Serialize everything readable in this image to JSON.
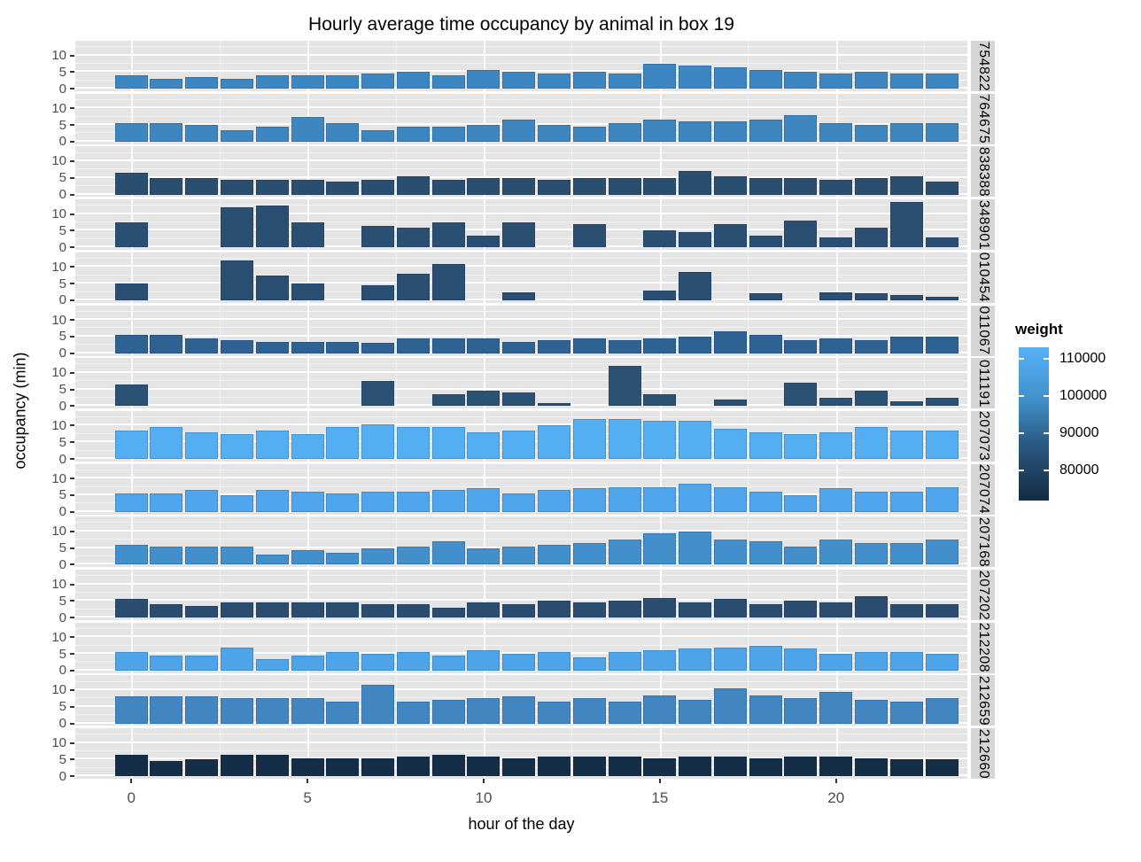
{
  "title": "Hourly average time occupancy by animal in box 19",
  "chart_data": {
    "type": "bar",
    "faceting": "one row per animal id, shared x axis",
    "xlabel": "hour of the day",
    "ylabel": "occupancy (min)",
    "x": [
      0,
      1,
      2,
      3,
      4,
      5,
      6,
      7,
      8,
      9,
      10,
      11,
      12,
      13,
      14,
      15,
      16,
      17,
      18,
      19,
      20,
      21,
      22,
      23
    ],
    "x_ticks": [
      0,
      5,
      10,
      15,
      20
    ],
    "y_ticks": [
      0,
      5,
      10
    ],
    "y_minor_ticks": [
      2.5,
      7.5,
      12.5
    ],
    "ylim": [
      0,
      14
    ],
    "legend": {
      "title": "weight",
      "ticks": [
        110000,
        100000,
        90000,
        80000
      ],
      "high_color": "#56B1F7",
      "low_color": "#132B43",
      "gradient_stops": [
        "#56B1F7",
        "#4090C9",
        "#2C5A84",
        "#132B43"
      ]
    },
    "panel_bg": "#E5E5E5",
    "strip_bg": "#D6D6D6",
    "facets": [
      {
        "label": "754822",
        "color": "#3C87C1",
        "values": [
          4,
          3,
          3.5,
          3,
          4,
          4,
          4,
          4.5,
          5,
          4,
          5.5,
          5,
          4.5,
          5,
          4.5,
          7.5,
          7,
          6.5,
          5.5,
          5,
          4.5,
          5,
          4.5,
          4.5
        ]
      },
      {
        "label": "764675",
        "color": "#3D86BF",
        "values": [
          5.5,
          5.5,
          5,
          3.5,
          4.5,
          7.5,
          5.5,
          3.5,
          4.5,
          4.5,
          5,
          6.5,
          5,
          4.5,
          5.5,
          6.5,
          6,
          6,
          6.5,
          8,
          5.5,
          5,
          5.5,
          5.5
        ]
      },
      {
        "label": "838388",
        "color": "#2A4E70",
        "values": [
          6.5,
          5,
          5,
          4.5,
          4.5,
          4.5,
          4,
          4.5,
          5.5,
          4.5,
          5,
          5,
          4.5,
          5,
          5,
          5,
          7,
          5.5,
          5,
          5,
          4.5,
          5,
          5.5,
          4
        ]
      },
      {
        "label": "348901",
        "color": "#2B4F72",
        "values": [
          7.5,
          0,
          0,
          12,
          12.5,
          7.5,
          0,
          6.5,
          6,
          7.5,
          3.5,
          7.5,
          0,
          7,
          0,
          5,
          4.5,
          7,
          3.5,
          8,
          3,
          6,
          13.5,
          3
        ]
      },
      {
        "label": "010454",
        "color": "#2B4F72",
        "values": [
          5,
          0,
          0,
          12,
          7.5,
          5,
          0,
          4.5,
          8,
          11,
          0,
          2.5,
          0,
          0,
          0,
          3,
          8.5,
          0,
          2,
          0,
          2.5,
          2,
          1.5,
          1
        ]
      },
      {
        "label": "011067",
        "color": "#2E6293",
        "values": [
          5.5,
          5.5,
          4.5,
          4,
          3.5,
          3.5,
          3.5,
          3,
          4.5,
          4.5,
          4.5,
          3.5,
          4,
          4.5,
          4,
          4.5,
          5,
          6.5,
          5.5,
          4,
          4.5,
          4,
          5,
          5
        ]
      },
      {
        "label": "011191",
        "color": "#2A5275",
        "values": [
          6.5,
          0,
          0,
          0,
          0,
          0,
          0,
          7.5,
          0,
          3.5,
          4.5,
          4,
          1,
          0,
          12,
          3.5,
          0,
          2,
          0,
          7,
          2.5,
          4.5,
          1.5,
          2.5
        ]
      },
      {
        "label": "207073",
        "color": "#54AEF2",
        "values": [
          8.5,
          9.5,
          8,
          7.5,
          8.5,
          7.5,
          9.5,
          10.5,
          9.5,
          9.5,
          8,
          8.5,
          10,
          12,
          12,
          11.5,
          11.5,
          9,
          8,
          7.5,
          8,
          9.5,
          8.5,
          8.5
        ]
      },
      {
        "label": "207074",
        "color": "#4FA5EC",
        "values": [
          5.5,
          5.5,
          6.5,
          5,
          6.5,
          6,
          5.5,
          6,
          6,
          6.5,
          7,
          5.5,
          6.5,
          7,
          7.5,
          7.5,
          8.5,
          7.5,
          6,
          5,
          7,
          6,
          6,
          7.5
        ]
      },
      {
        "label": "207168",
        "color": "#438FCB",
        "values": [
          6,
          5.5,
          5.5,
          5.5,
          3,
          4.5,
          3.5,
          5,
          5.5,
          7,
          5,
          5.5,
          6,
          6.5,
          7.5,
          9.5,
          10,
          7.5,
          7,
          5.5,
          7.5,
          6.5,
          6.5,
          7.5
        ]
      },
      {
        "label": "207202",
        "color": "#2A4C6E",
        "values": [
          5.5,
          4,
          3.5,
          4.5,
          4.5,
          4.5,
          4.5,
          4,
          4,
          3,
          4.5,
          4,
          5,
          4.5,
          5,
          6,
          4.5,
          5.5,
          4,
          5,
          4.5,
          6.5,
          4,
          4
        ]
      },
      {
        "label": "212208",
        "color": "#4EA4E8",
        "values": [
          5.5,
          4.5,
          4.5,
          7,
          3.5,
          4.5,
          5.5,
          5,
          5.5,
          4.5,
          6,
          5,
          5.5,
          4,
          5.5,
          6,
          6.5,
          7,
          7.5,
          6.5,
          5,
          5.5,
          5.5,
          5
        ]
      },
      {
        "label": "212659",
        "color": "#4186C0",
        "values": [
          8,
          8,
          8,
          7.5,
          7.5,
          7.5,
          6.5,
          11.5,
          6.5,
          7,
          7.5,
          8,
          6.5,
          7.5,
          6.5,
          8.5,
          7,
          10.5,
          8.5,
          7.5,
          9.5,
          7,
          6.5,
          7.5
        ]
      },
      {
        "label": "212660",
        "color": "#152E47",
        "values": [
          6.5,
          4.5,
          5,
          6.5,
          6.5,
          5.5,
          5.5,
          5.5,
          6,
          6.5,
          6,
          5.5,
          6,
          6,
          6,
          5.5,
          6,
          6,
          5.5,
          6,
          6,
          5.5,
          5,
          5
        ]
      }
    ]
  }
}
